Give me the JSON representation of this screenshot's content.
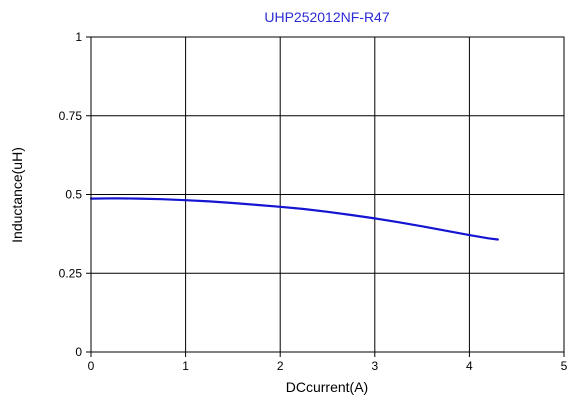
{
  "chart_data": {
    "type": "line",
    "title": "UHP252012NF-R47",
    "xlabel": "DCcurrent(A)",
    "ylabel": "Inductance(uH)",
    "xlim": [
      0,
      5
    ],
    "ylim": [
      0,
      1
    ],
    "x_ticks": [
      0,
      1,
      2,
      3,
      4,
      5
    ],
    "x_tick_labels": [
      "0",
      "1",
      "2",
      "3",
      "4",
      "5"
    ],
    "y_ticks": [
      0,
      0.25,
      0.5,
      0.75,
      1
    ],
    "y_tick_labels": [
      "0",
      "0.25",
      "0.5",
      "0.75",
      "1"
    ],
    "grid": true,
    "colors": {
      "title": "#2b2bd6",
      "series": "#1414d2",
      "grid": "#000000"
    },
    "series": [
      {
        "x": [
          0,
          0.25,
          0.5,
          0.75,
          1.0,
          1.25,
          1.5,
          1.75,
          2.0,
          2.25,
          2.5,
          2.75,
          3.0,
          3.25,
          3.5,
          3.75,
          4.0,
          4.2,
          4.3
        ],
        "y": [
          0.487,
          0.488,
          0.487,
          0.485,
          0.482,
          0.478,
          0.473,
          0.467,
          0.461,
          0.454,
          0.445,
          0.435,
          0.424,
          0.412,
          0.399,
          0.385,
          0.371,
          0.361,
          0.357
        ]
      }
    ]
  }
}
